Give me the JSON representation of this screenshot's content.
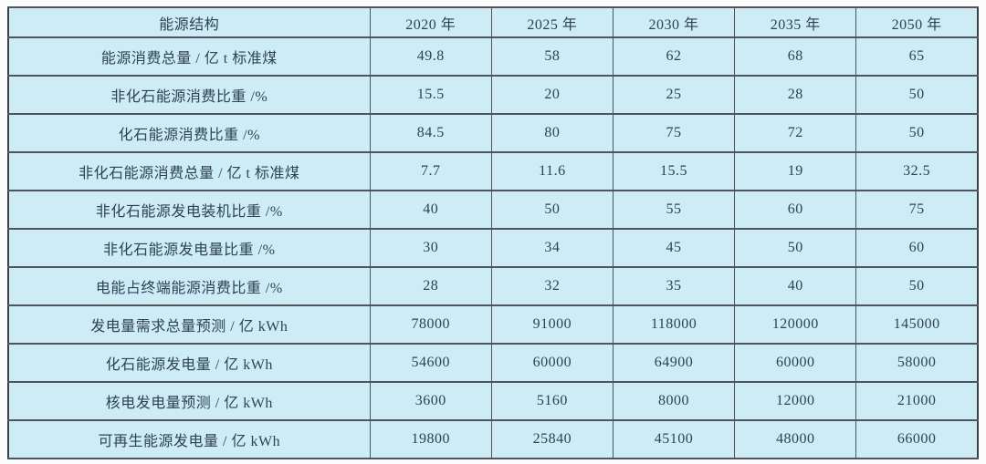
{
  "colors": {
    "page_bg": "#fbfbfb",
    "cell_bg": "#cdecf5",
    "border_dark": "#3a3f44",
    "border_mid": "#4d555c",
    "text": "#2f4156"
  },
  "table": {
    "header": [
      "能源结构",
      "2020 年",
      "2025 年",
      "2030 年",
      "2035 年",
      "2050 年"
    ],
    "rows": [
      {
        "label": "能源消费总量 / 亿 t 标准煤",
        "values": [
          "49.8",
          "58",
          "62",
          "68",
          "65"
        ]
      },
      {
        "label": "非化石能源消费比重 /%",
        "values": [
          "15.5",
          "20",
          "25",
          "28",
          "50"
        ]
      },
      {
        "label": "化石能源消费比重 /%",
        "values": [
          "84.5",
          "80",
          "75",
          "72",
          "50"
        ]
      },
      {
        "label": "非化石能源消费总量 / 亿 t 标准煤",
        "values": [
          "7.7",
          "11.6",
          "15.5",
          "19",
          "32.5"
        ]
      },
      {
        "label": "非化石能源发电装机比重 /%",
        "values": [
          "40",
          "50",
          "55",
          "60",
          "75"
        ]
      },
      {
        "label": "非化石能源发电量比重 /%",
        "values": [
          "30",
          "34",
          "45",
          "50",
          "60"
        ]
      },
      {
        "label": "电能占终端能源消费比重 /%",
        "values": [
          "28",
          "32",
          "35",
          "40",
          "50"
        ]
      },
      {
        "label": "发电量需求总量预测 / 亿 kWh",
        "values": [
          "78000",
          "91000",
          "118000",
          "120000",
          "145000"
        ]
      },
      {
        "label": "化石能源发电量 / 亿 kWh",
        "values": [
          "54600",
          "60000",
          "64900",
          "60000",
          "58000"
        ]
      },
      {
        "label": "核电发电量预测 / 亿 kWh",
        "values": [
          "3600",
          "5160",
          "8000",
          "12000",
          "21000"
        ]
      },
      {
        "label": "可再生能源发电量 / 亿 kWh",
        "values": [
          "19800",
          "25840",
          "45100",
          "48000",
          "66000"
        ]
      }
    ]
  }
}
